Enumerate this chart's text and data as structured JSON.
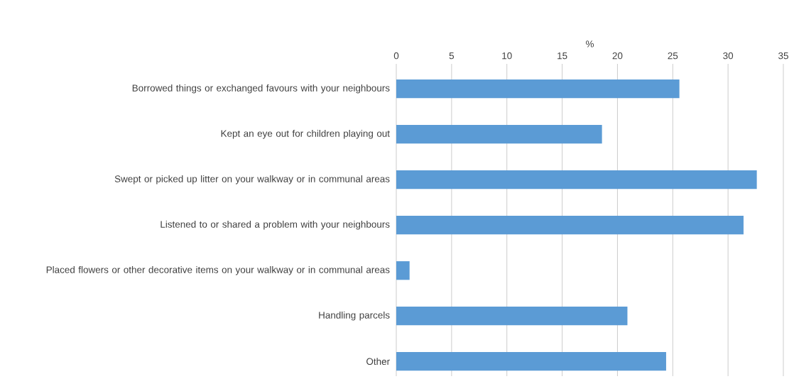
{
  "chart_data": {
    "type": "bar",
    "orientation": "horizontal",
    "xlabel": "%",
    "categories": [
      "Borrowed things or exchanged favours with your neighbours",
      "Kept an eye out for children playing out",
      "Swept or picked up litter on your walkway or in communal areas",
      "Listened to or shared a problem with your neighbours",
      "Placed flowers or other decorative items on your walkway or in communal areas",
      "Handling parcels",
      "Other"
    ],
    "values": [
      25.6,
      18.6,
      32.6,
      31.4,
      1.2,
      20.9,
      24.4
    ],
    "color": "#5b9bd5",
    "xlim": [
      0,
      35
    ],
    "xticks": [
      0,
      5,
      10,
      15,
      20,
      25,
      30,
      35
    ],
    "grid": "x"
  }
}
